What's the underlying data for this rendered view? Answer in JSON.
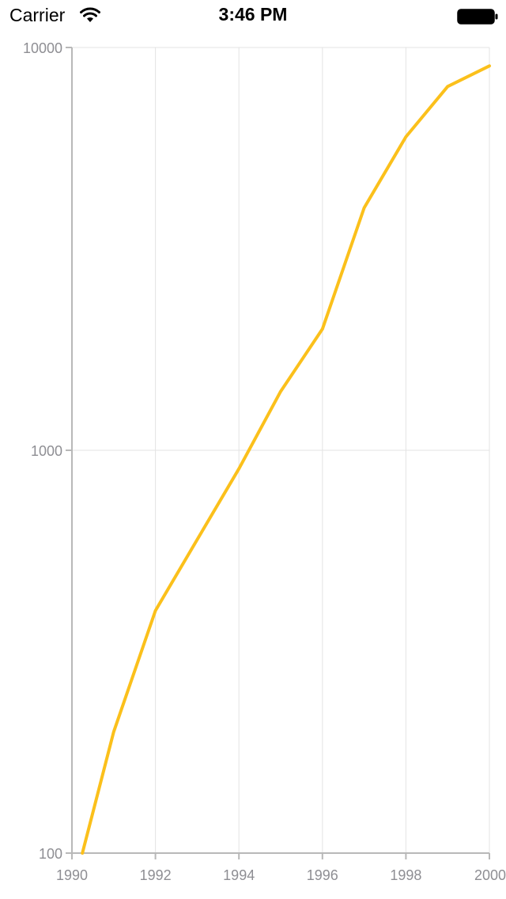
{
  "status_bar": {
    "carrier": "Carrier",
    "time": "3:46 PM",
    "wifi_icon": "wifi-icon",
    "battery_icon": "battery-icon"
  },
  "chart_data": {
    "type": "line",
    "title": "",
    "xlabel": "",
    "ylabel": "",
    "x_scale": "linear",
    "y_scale": "log",
    "xlim": [
      1990,
      2000
    ],
    "ylim": [
      100,
      10000
    ],
    "grid": true,
    "x_ticks": [
      "1990",
      "1992",
      "1994",
      "1996",
      "1998",
      "2000"
    ],
    "y_ticks": [
      "100",
      "1000",
      "10000"
    ],
    "series": [
      {
        "color": "#fbc01b",
        "x": [
          1990.25,
          1991,
          1992,
          1993,
          1994,
          1995,
          1996,
          1997,
          1998,
          1999,
          2000
        ],
        "y": [
          100,
          200,
          400,
          600,
          900,
          1400,
          2000,
          4000,
          6000,
          8000,
          9000
        ]
      }
    ]
  }
}
